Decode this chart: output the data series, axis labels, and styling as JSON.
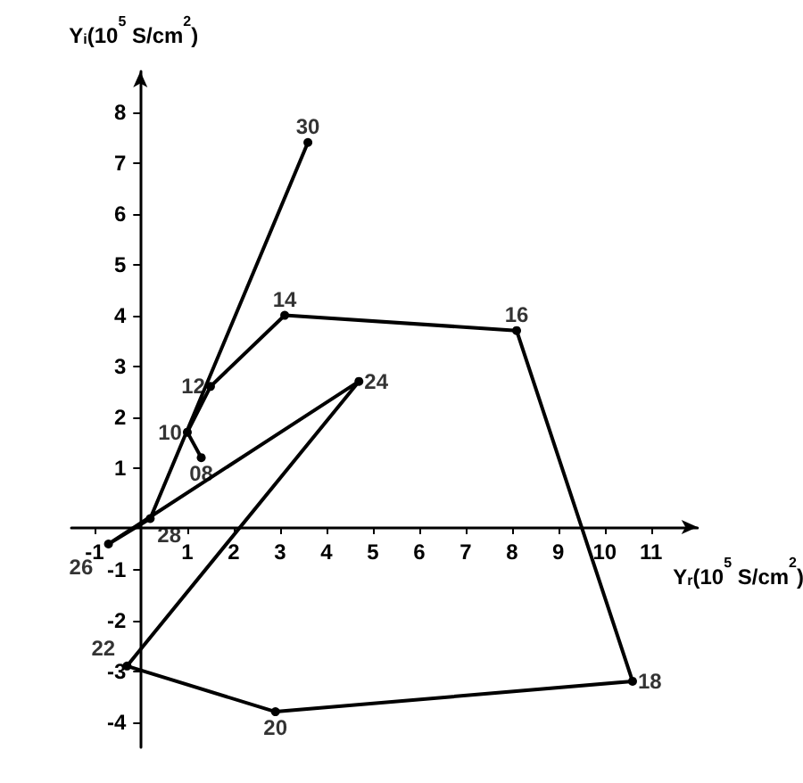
{
  "chart_data": {
    "type": "line",
    "xlabel": "Y$_{r}$(10$^{5}$ S/cm$^{2}$)",
    "ylabel": "Y$_{i}$(10$^{5}$ S/cm$^{2}$)",
    "series": [
      {
        "color": "#000000",
        "x": [
          1.3,
          1.0,
          1.5,
          3.1,
          8.1,
          10.6,
          2.9,
          -0.3,
          4.7,
          -0.7,
          0.2,
          3.6
        ],
        "values": [
          1.2,
          1.7,
          2.6,
          4.0,
          3.7,
          -3.2,
          -3.8,
          -2.9,
          2.7,
          -0.5,
          0.0,
          7.4
        ]
      }
    ],
    "annotations": [
      {
        "text": "08",
        "x": 1.3,
        "y": 1.2
      },
      {
        "text": "10",
        "x": 1.0,
        "y": 1.7
      },
      {
        "text": "12",
        "x": 1.5,
        "y": 2.6
      },
      {
        "text": "14",
        "x": 3.1,
        "y": 4.0
      },
      {
        "text": "16",
        "x": 8.1,
        "y": 3.7
      },
      {
        "text": "18",
        "x": 10.6,
        "y": -3.2
      },
      {
        "text": "20",
        "x": 2.9,
        "y": -3.8
      },
      {
        "text": "22",
        "x": -0.3,
        "y": -2.9
      },
      {
        "text": "24",
        "x": 4.7,
        "y": 2.7
      },
      {
        "text": "26",
        "x": -0.7,
        "y": -0.5
      },
      {
        "text": "28",
        "x": 0.2,
        "y": 0.0
      },
      {
        "text": "30",
        "x": 3.6,
        "y": 7.4
      }
    ],
    "xlim": [
      -1.5,
      12
    ],
    "xticks": [
      -1,
      1,
      2,
      3,
      4,
      5,
      6,
      7,
      8,
      9,
      10,
      11
    ],
    "ylim": [
      -4.5,
      8.8
    ],
    "yticks": [
      -4,
      -3,
      -2,
      -1,
      1,
      2,
      3,
      4,
      5,
      6,
      7,
      8
    ],
    "marker": "circle",
    "line_style": "solid",
    "grid": false
  }
}
